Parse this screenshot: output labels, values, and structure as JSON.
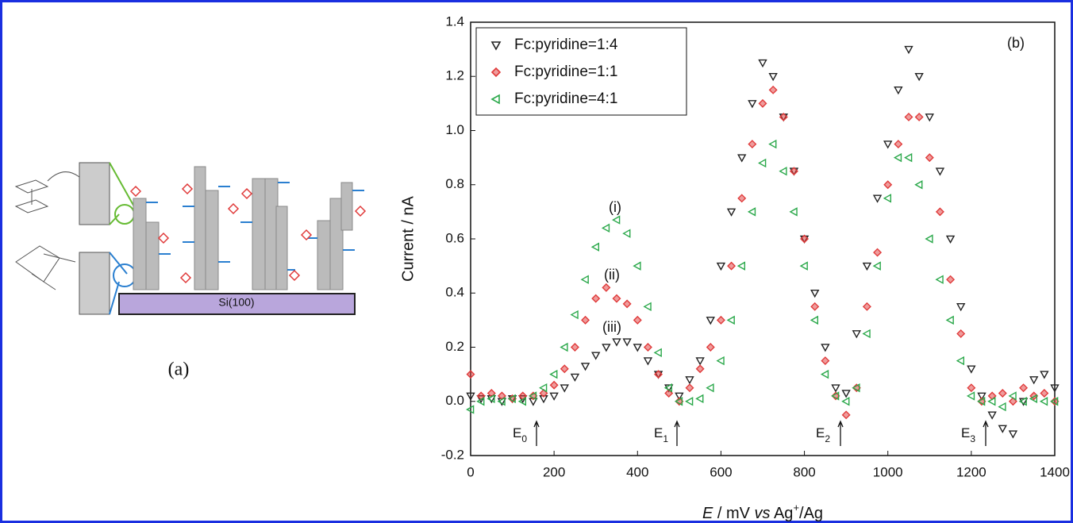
{
  "panel_a": {
    "substrate": "Si(100)",
    "label": "(a)"
  },
  "chart_data": {
    "type": "scatter",
    "panel_label": "(b)",
    "x_label": [
      "E",
      " / mV ",
      "vs",
      " Ag",
      "+",
      "/Ag"
    ],
    "y_label": "Current / nA",
    "x": [
      0,
      25,
      50,
      75,
      100,
      125,
      150,
      175,
      200,
      225,
      250,
      275,
      300,
      325,
      350,
      375,
      400,
      425,
      450,
      475,
      500,
      525,
      550,
      575,
      600,
      625,
      650,
      675,
      700,
      725,
      750,
      775,
      800,
      825,
      850,
      875,
      900,
      925,
      950,
      975,
      1000,
      1025,
      1050,
      1075,
      1100,
      1125,
      1150,
      1175,
      1200,
      1225,
      1250,
      1275,
      1300,
      1325,
      1350,
      1375,
      1400
    ],
    "series": [
      {
        "name": "Fc:pyridine=1:4",
        "color": "#222222",
        "marker": "triangle-down",
        "values": [
          0.02,
          0.01,
          0.01,
          0.0,
          0.01,
          0.01,
          0.0,
          0.01,
          0.02,
          0.05,
          0.09,
          0.13,
          0.17,
          0.2,
          0.22,
          0.22,
          0.2,
          0.15,
          0.1,
          0.05,
          0.02,
          0.08,
          0.15,
          0.3,
          0.5,
          0.7,
          0.9,
          1.1,
          1.25,
          1.2,
          1.05,
          0.85,
          0.6,
          0.4,
          0.2,
          0.05,
          0.03,
          0.25,
          0.5,
          0.75,
          0.95,
          1.15,
          1.3,
          1.2,
          1.05,
          0.85,
          0.6,
          0.35,
          0.12,
          0.02,
          -0.05,
          -0.1,
          -0.12,
          0.0,
          0.08,
          0.1,
          0.05
        ]
      },
      {
        "name": "Fc:pyridine=1:1",
        "color": "#e03a3a",
        "marker": "diamond",
        "values": [
          0.1,
          0.02,
          0.03,
          0.02,
          0.01,
          0.02,
          0.02,
          0.03,
          0.06,
          0.12,
          0.2,
          0.3,
          0.38,
          0.42,
          0.38,
          0.36,
          0.3,
          0.2,
          0.1,
          0.03,
          0.0,
          0.05,
          0.12,
          0.2,
          0.3,
          0.5,
          0.75,
          0.95,
          1.1,
          1.15,
          1.05,
          0.85,
          0.6,
          0.35,
          0.15,
          0.02,
          -0.05,
          0.05,
          0.35,
          0.55,
          0.8,
          0.95,
          1.05,
          1.05,
          0.9,
          0.7,
          0.45,
          0.25,
          0.05,
          0.0,
          0.02,
          0.03,
          0.0,
          0.05,
          0.02,
          0.03,
          0.0
        ]
      },
      {
        "name": "Fc:pyridine=4:1",
        "color": "#2aa84a",
        "marker": "triangle-left",
        "values": [
          -0.03,
          0.0,
          0.01,
          0.0,
          0.01,
          0.0,
          0.02,
          0.05,
          0.1,
          0.2,
          0.32,
          0.45,
          0.57,
          0.64,
          0.67,
          0.62,
          0.5,
          0.35,
          0.18,
          0.05,
          0.0,
          0.0,
          0.01,
          0.05,
          0.15,
          0.3,
          0.5,
          0.7,
          0.88,
          0.95,
          0.85,
          0.7,
          0.5,
          0.3,
          0.1,
          0.02,
          0.0,
          0.05,
          0.25,
          0.5,
          0.75,
          0.9,
          0.9,
          0.8,
          0.6,
          0.45,
          0.3,
          0.15,
          0.02,
          0.0,
          0.0,
          -0.02,
          0.02,
          0.0,
          0.01,
          0.0,
          0.0
        ]
      }
    ],
    "annotations": [
      "(i)",
      "(ii)",
      "(iii)"
    ],
    "potentials": [
      {
        "text": "E",
        "sub": "0"
      },
      {
        "text": "E",
        "sub": "1"
      },
      {
        "text": "E",
        "sub": "2"
      },
      {
        "text": "E",
        "sub": "3"
      }
    ],
    "xlim": [
      0,
      1400
    ],
    "xticks": [
      0,
      200,
      400,
      600,
      800,
      1000,
      1200,
      1400
    ],
    "ylim": [
      -0.2,
      1.4
    ],
    "yticks": [
      -0.2,
      {
        "value": 0,
        "label": "0.0"
      },
      0.2,
      0.4,
      0.6,
      0.8,
      {
        "value": 1,
        "label": "1.0"
      },
      1.2,
      1.4
    ],
    "legend": "top-left"
  }
}
